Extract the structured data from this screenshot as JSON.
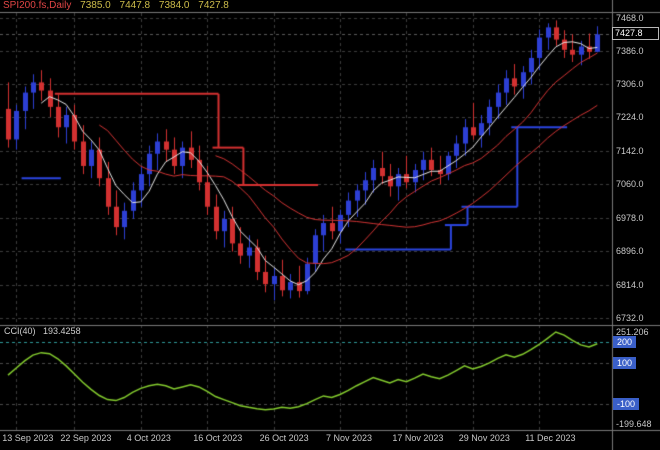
{
  "header": {
    "symbol_period": "SPI200.fs,Daily",
    "open": "7385.0",
    "high": "7447.8",
    "low": "7384.0",
    "close": "7427.8"
  },
  "price_axis": {
    "labels": [
      "7468.0",
      "7386.0",
      "7306.0",
      "7224.0",
      "7142.0",
      "7060.0",
      "6978.0",
      "6896.0",
      "6814.0",
      "6732.0"
    ],
    "values": [
      7468,
      7386,
      7306,
      7224,
      7142,
      7060,
      6978,
      6896,
      6814,
      6732
    ],
    "current_price": "7427.8",
    "current_price_value": 7427.8
  },
  "indicator": {
    "name": "CCI(40)",
    "value": "193.4258",
    "current_value": 193.4258,
    "axis_max": "251.206",
    "axis_min": "-199.648",
    "axis_max_value": 251.206,
    "axis_min_value": -199.648,
    "levels": [
      {
        "label": "200",
        "value": 200
      },
      {
        "label": "100",
        "value": 100
      },
      {
        "label": "-100",
        "value": -100
      }
    ]
  },
  "date_axis": {
    "labels": [
      "13 Sep 2023",
      "22 Sep 2023",
      "4 Oct 2023",
      "16 Oct 2023",
      "26 Oct 2023",
      "7 Nov 2023",
      "17 Nov 2023",
      "29 Nov 2023",
      "11 Dec 2023"
    ],
    "indices": [
      1,
      8,
      16,
      24,
      32,
      40,
      48,
      56,
      64
    ]
  },
  "colors": {
    "background": "#000000",
    "grid": "#3c3c3c",
    "axis_text": "#c8c8c8",
    "separator": "#7a7a7a",
    "bull": "#2d3fd4",
    "bear": "#d33131",
    "ma_fast": "#e6e6e6",
    "ma_slow": "#d23434",
    "trend_up": "#2b45e0",
    "trend_down": "#d53030",
    "cci_line": "#84cc2e",
    "level_line": "#4a4a4a",
    "level_200": "#2e9a9a",
    "badge_bg": "#3a5fc8",
    "title_symbol": "#e04545",
    "title_values": "#cdbc4a",
    "current_line": "#5a5a5a"
  },
  "chart_data": {
    "type": "candlestick",
    "symbol": "SPI200.fs",
    "timeframe": "Daily",
    "title": "SPI200.fs Daily with CCI(40)",
    "x_tick_labels": [
      "13 Sep 2023",
      "22 Sep 2023",
      "4 Oct 2023",
      "16 Oct 2023",
      "26 Oct 2023",
      "7 Nov 2023",
      "17 Nov 2023",
      "29 Nov 2023",
      "11 Dec 2023"
    ],
    "y_range": [
      6732,
      7468
    ],
    "last_ohlc": {
      "open": 7385.0,
      "high": 7447.8,
      "low": 7384.0,
      "close": 7427.8
    },
    "candles": [
      [
        7245,
        7310,
        7150,
        7170
      ],
      [
        7170,
        7255,
        7145,
        7240
      ],
      [
        7240,
        7300,
        7195,
        7285
      ],
      [
        7285,
        7330,
        7245,
        7310
      ],
      [
        7310,
        7340,
        7265,
        7290
      ],
      [
        7290,
        7320,
        7225,
        7250
      ],
      [
        7250,
        7280,
        7175,
        7200
      ],
      [
        7200,
        7250,
        7160,
        7230
      ],
      [
        7230,
        7255,
        7145,
        7165
      ],
      [
        7165,
        7205,
        7085,
        7105
      ],
      [
        7105,
        7165,
        7075,
        7145
      ],
      [
        7145,
        7175,
        7055,
        7075
      ],
      [
        7075,
        7115,
        6985,
        7005
      ],
      [
        7005,
        7045,
        6935,
        6955
      ],
      [
        6955,
        7015,
        6925,
        6995
      ],
      [
        6995,
        7065,
        6975,
        7045
      ],
      [
        7045,
        7105,
        7005,
        7085
      ],
      [
        7085,
        7155,
        7055,
        7135
      ],
      [
        7135,
        7185,
        7095,
        7165
      ],
      [
        7165,
        7195,
        7115,
        7145
      ],
      [
        7145,
        7175,
        7085,
        7105
      ],
      [
        7105,
        7165,
        7075,
        7150
      ],
      [
        7150,
        7190,
        7100,
        7120
      ],
      [
        7120,
        7155,
        7045,
        7065
      ],
      [
        7065,
        7105,
        6985,
        7005
      ],
      [
        7005,
        7035,
        6925,
        6945
      ],
      [
        6945,
        6995,
        6905,
        6975
      ],
      [
        6975,
        7005,
        6895,
        6915
      ],
      [
        6915,
        6955,
        6865,
        6885
      ],
      [
        6885,
        6935,
        6855,
        6905
      ],
      [
        6905,
        6925,
        6825,
        6845
      ],
      [
        6845,
        6885,
        6795,
        6815
      ],
      [
        6815,
        6855,
        6775,
        6835
      ],
      [
        6835,
        6875,
        6785,
        6800
      ],
      [
        6800,
        6840,
        6780,
        6820
      ],
      [
        6820,
        6860,
        6782,
        6798
      ],
      [
        6798,
        6880,
        6790,
        6865
      ],
      [
        6865,
        6950,
        6845,
        6935
      ],
      [
        6935,
        6985,
        6895,
        6965
      ],
      [
        6965,
        7005,
        6925,
        6945
      ],
      [
        6945,
        6998,
        6915,
        6985
      ],
      [
        6985,
        7040,
        6955,
        7020
      ],
      [
        7020,
        7060,
        6980,
        7045
      ],
      [
        7045,
        7090,
        7010,
        7070
      ],
      [
        7070,
        7120,
        7040,
        7100
      ],
      [
        7100,
        7140,
        7060,
        7080
      ],
      [
        7080,
        7110,
        7030,
        7055
      ],
      [
        7055,
        7100,
        7020,
        7085
      ],
      [
        7085,
        7130,
        7050,
        7065
      ],
      [
        7065,
        7110,
        7040,
        7095
      ],
      [
        7095,
        7140,
        7070,
        7120
      ],
      [
        7120,
        7150,
        7080,
        7095
      ],
      [
        7095,
        7130,
        7060,
        7085
      ],
      [
        7085,
        7140,
        7070,
        7130
      ],
      [
        7130,
        7180,
        7100,
        7160
      ],
      [
        7160,
        7220,
        7130,
        7200
      ],
      [
        7200,
        7260,
        7170,
        7180
      ],
      [
        7180,
        7230,
        7150,
        7210
      ],
      [
        7210,
        7268,
        7180,
        7250
      ],
      [
        7250,
        7305,
        7220,
        7285
      ],
      [
        7285,
        7340,
        7255,
        7320
      ],
      [
        7320,
        7355,
        7280,
        7300
      ],
      [
        7300,
        7350,
        7270,
        7335
      ],
      [
        7335,
        7390,
        7305,
        7370
      ],
      [
        7370,
        7440,
        7340,
        7420
      ],
      [
        7420,
        7455,
        7390,
        7445
      ],
      [
        7445,
        7462,
        7400,
        7415
      ],
      [
        7415,
        7438,
        7370,
        7390
      ],
      [
        7390,
        7428,
        7360,
        7378
      ],
      [
        7378,
        7412,
        7352,
        7398
      ],
      [
        7398,
        7430,
        7368,
        7385
      ],
      [
        7385,
        7447.8,
        7384,
        7427.8
      ]
    ],
    "moving_averages": [
      {
        "period": 5,
        "color_key": "ma_fast"
      },
      {
        "period": 12,
        "color_key": "ma_slow"
      },
      {
        "period": 26,
        "color_key": "ma_slow"
      }
    ],
    "trend_segments": [
      {
        "dir": "up",
        "from": 2,
        "to": 6,
        "price": 7075
      },
      {
        "dir": "down",
        "from": 6,
        "to": 25,
        "price": 7282
      },
      {
        "dir": "down",
        "from": 25,
        "to": 28,
        "price": 7150
      },
      {
        "dir": "down",
        "from": 28,
        "to": 37,
        "price": 7058
      },
      {
        "dir": "up",
        "from": 41,
        "to": 53,
        "price": 6900
      },
      {
        "dir": "up",
        "from": 53,
        "to": 55,
        "price": 6960
      },
      {
        "dir": "up",
        "from": 55,
        "to": 61,
        "price": 7005
      },
      {
        "dir": "up",
        "from": 61,
        "to": 67,
        "price": 7200
      }
    ],
    "cci": {
      "period": 40,
      "range": [
        -199.648,
        251.206
      ],
      "values": [
        40,
        75,
        110,
        138,
        150,
        145,
        120,
        85,
        45,
        5,
        -30,
        -60,
        -80,
        -85,
        -70,
        -45,
        -25,
        -12,
        -5,
        -12,
        -28,
        -18,
        -8,
        -18,
        -40,
        -65,
        -80,
        -95,
        -110,
        -118,
        -125,
        -130,
        -126,
        -118,
        -122,
        -115,
        -100,
        -80,
        -62,
        -70,
        -55,
        -35,
        -12,
        8,
        28,
        15,
        2,
        18,
        8,
        25,
        45,
        32,
        22,
        40,
        62,
        85,
        70,
        82,
        100,
        122,
        140,
        128,
        142,
        165,
        190,
        220,
        251.2,
        236,
        210,
        188,
        178,
        193.43
      ]
    }
  }
}
